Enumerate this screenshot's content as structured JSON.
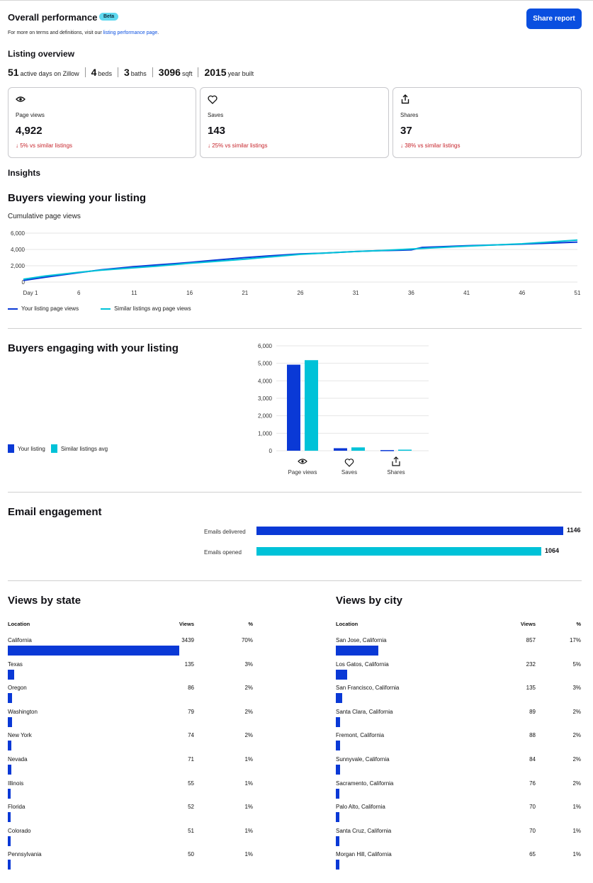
{
  "header": {
    "title": "Overall performance",
    "badge": "Beta",
    "share_label": "Share report",
    "note_prefix": "For more on terms and definitions, visit our ",
    "note_link": "listing performance page",
    "note_suffix": "."
  },
  "overview": {
    "title": "Listing overview",
    "stats": [
      {
        "value": "51",
        "label": "active days on Zillow"
      },
      {
        "value": "4",
        "label": "beds"
      },
      {
        "value": "3",
        "label": "baths"
      },
      {
        "value": "3096",
        "label": "sqft"
      },
      {
        "value": "2015",
        "label": "year built"
      }
    ]
  },
  "cards": [
    {
      "icon": "eye-icon",
      "label": "Page views",
      "value": "4,922",
      "delta": "↓ 5% vs similar listings"
    },
    {
      "icon": "heart-icon",
      "label": "Saves",
      "value": "143",
      "delta": "↓ 25% vs similar listings"
    },
    {
      "icon": "share-icon",
      "label": "Shares",
      "value": "37",
      "delta": "↓ 38% vs similar listings"
    }
  ],
  "insights_title": "Insights",
  "viewing": {
    "title": "Buyers viewing your listing",
    "subtitle": "Cumulative page views",
    "legend": [
      "Your listing page views",
      "Similar listings avg page views"
    ]
  },
  "engaging": {
    "title": "Buyers engaging with your listing",
    "legend": [
      "Your listing",
      "Similar listings avg"
    ]
  },
  "email": {
    "title": "Email engagement",
    "rows": [
      {
        "label": "Emails delivered",
        "value": "1146"
      },
      {
        "label": "Emails opened",
        "value": "1064"
      }
    ]
  },
  "states": {
    "title": "Views by state",
    "headers": [
      "Location",
      "Views",
      "%"
    ],
    "rows": [
      {
        "name": "California",
        "views": "3439",
        "pct": "70%"
      },
      {
        "name": "Texas",
        "views": "135",
        "pct": "3%"
      },
      {
        "name": "Oregon",
        "views": "86",
        "pct": "2%"
      },
      {
        "name": "Washington",
        "views": "79",
        "pct": "2%"
      },
      {
        "name": "New York",
        "views": "74",
        "pct": "2%"
      },
      {
        "name": "Nevada",
        "views": "71",
        "pct": "1%"
      },
      {
        "name": "Illinois",
        "views": "55",
        "pct": "1%"
      },
      {
        "name": "Florida",
        "views": "52",
        "pct": "1%"
      },
      {
        "name": "Colorado",
        "views": "51",
        "pct": "1%"
      },
      {
        "name": "Pennsylvania",
        "views": "50",
        "pct": "1%"
      }
    ]
  },
  "cities": {
    "title": "Views by city",
    "headers": [
      "Location",
      "Views",
      "%"
    ],
    "rows": [
      {
        "name": "San Jose, California",
        "views": "857",
        "pct": "17%"
      },
      {
        "name": "Los Gatos, California",
        "views": "232",
        "pct": "5%"
      },
      {
        "name": "San Francisco, California",
        "views": "135",
        "pct": "3%"
      },
      {
        "name": "Santa Clara, California",
        "views": "89",
        "pct": "2%"
      },
      {
        "name": "Fremont, California",
        "views": "88",
        "pct": "2%"
      },
      {
        "name": "Sunnyvale, California",
        "views": "84",
        "pct": "2%"
      },
      {
        "name": "Sacramento, California",
        "views": "76",
        "pct": "2%"
      },
      {
        "name": "Palo Alto, California",
        "views": "70",
        "pct": "1%"
      },
      {
        "name": "Santa Cruz, California",
        "views": "70",
        "pct": "1%"
      },
      {
        "name": "Morgan Hill, California",
        "views": "65",
        "pct": "1%"
      }
    ]
  },
  "colors": {
    "blue": "#0a39d6",
    "cyan": "#00c2d8",
    "accent": "#0a4fe0",
    "negative": "#c7262d"
  },
  "chart_data": [
    {
      "type": "line",
      "x_ticks": [
        "Day 1",
        "6",
        "11",
        "16",
        "21",
        "26",
        "31",
        "36",
        "41",
        "46",
        "51"
      ],
      "y_ticks": [
        "0",
        "2,000",
        "4,000",
        "6,000"
      ],
      "ylim": [
        0,
        6000
      ],
      "xlim": [
        1,
        51
      ],
      "series": [
        {
          "name": "Your listing page views",
          "color": "#0a39d6",
          "x": [
            1,
            3,
            6,
            8,
            11,
            13,
            16,
            18,
            21,
            23,
            26,
            28,
            31,
            33,
            35,
            36,
            37,
            41,
            46,
            51
          ],
          "y": [
            200,
            600,
            1150,
            1500,
            1900,
            2100,
            2400,
            2650,
            3000,
            3200,
            3450,
            3550,
            3750,
            3850,
            3900,
            3950,
            4250,
            4450,
            4650,
            4900
          ]
        },
        {
          "name": "Similar listings avg page views",
          "color": "#00c2d8",
          "x": [
            1,
            3,
            6,
            8,
            11,
            13,
            16,
            18,
            21,
            23,
            26,
            28,
            31,
            33,
            36,
            38,
            41,
            46,
            51
          ],
          "y": [
            350,
            750,
            1200,
            1450,
            1750,
            1950,
            2300,
            2500,
            2800,
            3050,
            3400,
            3550,
            3750,
            3850,
            4050,
            4200,
            4400,
            4700,
            5150
          ]
        }
      ]
    },
    {
      "type": "bar",
      "categories": [
        "Page views",
        "Saves",
        "Shares"
      ],
      "category_icons": [
        "eye-icon",
        "heart-icon",
        "share-icon"
      ],
      "y_ticks": [
        "0",
        "1,000",
        "2,000",
        "3,000",
        "4,000",
        "5,000",
        "6,000"
      ],
      "ylim": [
        0,
        6000
      ],
      "series": [
        {
          "name": "Your listing",
          "color": "#0a39d6",
          "values": [
            4922,
            143,
            37
          ]
        },
        {
          "name": "Similar listings avg",
          "color": "#00c2d8",
          "values": [
            5180,
            190,
            60
          ]
        }
      ]
    },
    {
      "type": "bar",
      "orientation": "horizontal",
      "categories": [
        "Emails delivered",
        "Emails opened"
      ],
      "values": [
        1146,
        1064
      ],
      "colors": [
        "#0a39d6",
        "#00c2d8"
      ]
    }
  ]
}
